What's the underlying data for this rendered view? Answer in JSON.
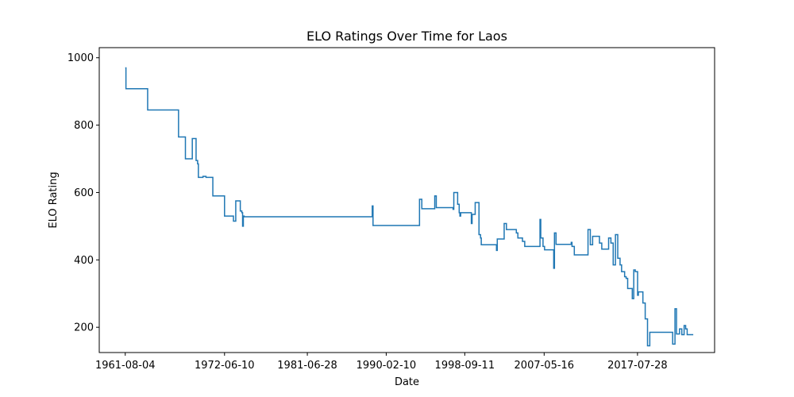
{
  "chart_data": {
    "type": "line",
    "title": "ELO Ratings Over Time for Laos",
    "xlabel": "Date",
    "ylabel": "ELO Rating",
    "x_ticks": [
      "1961-08-04",
      "1972-06-10",
      "1981-06-28",
      "1990-02-10",
      "1998-09-11",
      "2007-05-16",
      "2017-07-28"
    ],
    "y_ticks": [
      "200",
      "400",
      "600",
      "800",
      "1000"
    ],
    "ylim": [
      125,
      1030
    ],
    "xlim": [
      "1958-10-01",
      "2025-12-31"
    ],
    "grid": false,
    "step": "post",
    "line_color": "#1f77b4",
    "series": [
      {
        "x": [
          "1961-08-04",
          "1961-09-01",
          "1964-01-15",
          "1967-06-01",
          "1968-03-01",
          "1968-12-01",
          "1969-05-01",
          "1969-06-01",
          "1969-07-01",
          "1969-08-01",
          "1970-01-01",
          "1970-02-01",
          "1970-06-01",
          "1971-03-01",
          "1971-04-01",
          "1972-06-10",
          "1973-06-01",
          "1973-09-01",
          "1974-03-01",
          "1974-04-01",
          "1974-05-01",
          "1974-06-01",
          "1974-07-01",
          "1974-08-01",
          "1974-09-01",
          "1974-10-01",
          "1974-11-01",
          "1974-12-01",
          "1975-01-01",
          "1975-02-01",
          "1988-08-01",
          "1988-09-01",
          "1993-10-01",
          "1994-01-01",
          "1995-06-01",
          "1995-08-01",
          "1997-06-01",
          "1997-07-01",
          "1997-12-01",
          "1998-02-01",
          "1998-03-01",
          "1998-04-01",
          "1999-06-01",
          "1999-07-01",
          "1999-11-01",
          "2000-04-01",
          "2000-06-01",
          "2000-07-01",
          "2001-04-01",
          "2001-05-01",
          "2002-03-01",
          "2002-04-01",
          "2003-01-01",
          "2003-04-01",
          "2004-05-01",
          "2004-07-01",
          "2005-01-01",
          "2005-04-01",
          "2005-06-01",
          "2005-07-01",
          "2006-12-01",
          "2007-01-01",
          "2007-02-01",
          "2007-04-01",
          "2007-06-01",
          "2008-06-01",
          "2008-07-01",
          "2008-09-01",
          "2010-02-01",
          "2010-05-01",
          "2010-06-01",
          "2010-09-01",
          "2011-01-01",
          "2011-06-01",
          "2012-03-01",
          "2012-06-01",
          "2012-09-01",
          "2013-06-01",
          "2013-09-01",
          "2014-06-01",
          "2014-09-01",
          "2014-12-01",
          "2015-03-01",
          "2015-06-01",
          "2015-09-01",
          "2015-11-01",
          "2016-03-01",
          "2016-05-01",
          "2016-07-01",
          "2017-01-01",
          "2017-03-01",
          "2017-05-01",
          "2017-08-01",
          "2017-09-01",
          "2018-03-01",
          "2018-04-01",
          "2018-06-01",
          "2018-09-01",
          "2018-12-01",
          "2019-03-01",
          "2019-09-01",
          "2020-01-01",
          "2021-06-01",
          "2021-09-01",
          "2021-11-01",
          "2022-03-01",
          "2022-06-01",
          "2022-09-01",
          "2022-11-01",
          "2023-01-01",
          "2023-03-01",
          "2023-06-01",
          "2023-09-01"
        ],
        "y": [
          970,
          908,
          845,
          765,
          700,
          760,
          695,
          695,
          685,
          645,
          645,
          648,
          645,
          590,
          590,
          530,
          515,
          575,
          545,
          545,
          540,
          500,
          530,
          528,
          528,
          528,
          528,
          528,
          528,
          528,
          560,
          502,
          580,
          552,
          590,
          555,
          550,
          600,
          565,
          540,
          530,
          540,
          508,
          535,
          570,
          475,
          465,
          445,
          445,
          445,
          428,
          462,
          508,
          490,
          480,
          465,
          455,
          440,
          440,
          440,
          520,
          465,
          465,
          440,
          430,
          375,
          480,
          446,
          446,
          452,
          440,
          415,
          415,
          415,
          490,
          445,
          470,
          450,
          432,
          465,
          450,
          385,
          475,
          405,
          385,
          365,
          350,
          345,
          315,
          285,
          370,
          365,
          295,
          305,
          272,
          272,
          225,
          145,
          185,
          185,
          185,
          185,
          150,
          255,
          180,
          195,
          178,
          205,
          195,
          178,
          178,
          178,
          178
        ]
      }
    ]
  }
}
